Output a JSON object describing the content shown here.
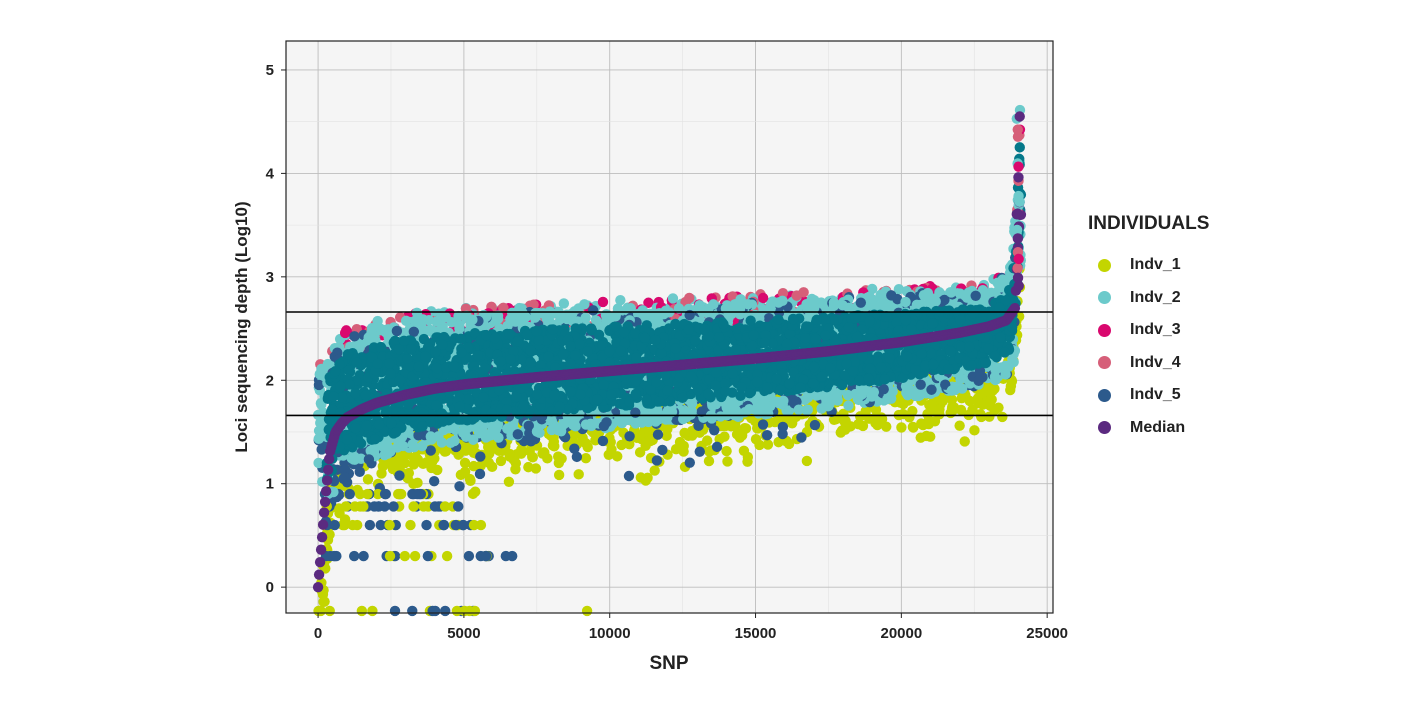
{
  "chart_data": {
    "type": "scatter",
    "xlabel": "SNP",
    "ylabel": "Loci sequencing depth (Log10)",
    "xlim": [
      -1100,
      25200
    ],
    "ylim": [
      -0.25,
      5.28
    ],
    "x_ticks": [
      "0",
      "5000",
      "10000",
      "15000",
      "20000",
      "25000"
    ],
    "y_ticks": [
      "0",
      "1",
      "2",
      "3",
      "4",
      "5"
    ],
    "hlines": [
      1.66,
      2.66
    ],
    "n_snps": 24100,
    "grid": true,
    "legend_position": "right",
    "legend_title": "INDIVIDUALS",
    "series": [
      {
        "name": "Indv_1",
        "color": "#c3d500"
      },
      {
        "name": "Indv_2",
        "color": "#6ccacb"
      },
      {
        "name": "Indv_3",
        "color": "#d9086e"
      },
      {
        "name": "Indv_4",
        "color": "#d65f79"
      },
      {
        "name": "Indv_5",
        "color": "#2c5a8c"
      },
      {
        "name": "Median",
        "color": "#5b2a80"
      }
    ],
    "median_curve": {
      "x": [
        0,
        200,
        400,
        600,
        800,
        1000,
        1500,
        2000,
        3000,
        4000,
        5000,
        7500,
        10000,
        12500,
        15000,
        17500,
        20000,
        22000,
        23000,
        23600,
        23900,
        24050
      ],
      "y": [
        0.0,
        0.7,
        1.3,
        1.5,
        1.58,
        1.64,
        1.72,
        1.78,
        1.86,
        1.92,
        1.96,
        2.03,
        2.09,
        2.15,
        2.21,
        2.28,
        2.37,
        2.46,
        2.52,
        2.58,
        2.7,
        3.6
      ]
    },
    "band_top": {
      "x": [
        0,
        1000,
        2500,
        5000,
        10000,
        15000,
        20000,
        23000,
        23800,
        24050
      ],
      "y": [
        2.2,
        2.55,
        2.68,
        2.75,
        2.82,
        2.88,
        2.95,
        3.0,
        3.2,
        4.65
      ]
    }
  }
}
